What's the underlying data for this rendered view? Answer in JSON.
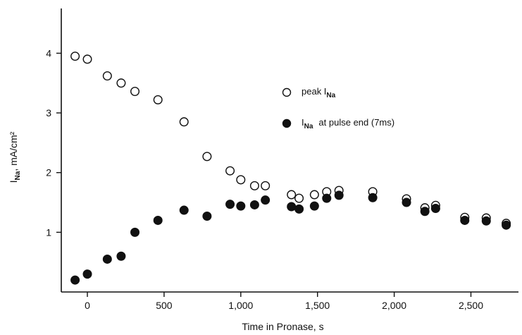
{
  "chart_data": {
    "type": "scatter",
    "xlabel": "Time in Pronase, s",
    "ylabel_main": "I",
    "ylabel_sub": "Na",
    "ylabel_rest": ", mA/cm²",
    "xlim": [
      -170,
      2810
    ],
    "ylim": [
      0,
      4.75
    ],
    "x_ticks": [
      0,
      500,
      1000,
      1500,
      2000,
      2500
    ],
    "x_tick_labels": [
      "0",
      "500",
      "1,000",
      "1,500",
      "2,000",
      "2,500"
    ],
    "y_ticks": [
      1,
      2,
      3,
      4
    ],
    "y_tick_labels": [
      "1",
      "2",
      "3",
      "4"
    ],
    "grid": false,
    "legend_position": "top-right",
    "series": [
      {
        "legend_main": "peak I",
        "legend_sub": "Na",
        "legend_rest": "",
        "marker": "open-circle",
        "color": "#111111",
        "x": [
          -80,
          0,
          130,
          220,
          310,
          460,
          630,
          780,
          930,
          1000,
          1090,
          1160,
          1330,
          1380,
          1480,
          1560,
          1640,
          1860,
          2080,
          2200,
          2270,
          2460,
          2600,
          2730
        ],
        "y": [
          3.95,
          3.9,
          3.62,
          3.5,
          3.36,
          3.22,
          2.85,
          2.27,
          2.03,
          1.88,
          1.78,
          1.78,
          1.63,
          1.57,
          1.63,
          1.68,
          1.7,
          1.68,
          1.56,
          1.41,
          1.45,
          1.25,
          1.24,
          1.15
        ]
      },
      {
        "legend_main": "I",
        "legend_sub": "Na",
        "legend_rest": "at pulse end (7ms)",
        "marker": "filled-circle",
        "color": "#111111",
        "x": [
          -80,
          0,
          130,
          220,
          310,
          460,
          630,
          780,
          930,
          1000,
          1090,
          1160,
          1330,
          1380,
          1480,
          1560,
          1640,
          1860,
          2080,
          2200,
          2270,
          2460,
          2600,
          2730
        ],
        "y": [
          0.2,
          0.3,
          0.55,
          0.6,
          1.0,
          1.2,
          1.37,
          1.27,
          1.47,
          1.44,
          1.46,
          1.54,
          1.43,
          1.39,
          1.44,
          1.57,
          1.62,
          1.58,
          1.5,
          1.35,
          1.4,
          1.2,
          1.19,
          1.12
        ]
      }
    ]
  }
}
